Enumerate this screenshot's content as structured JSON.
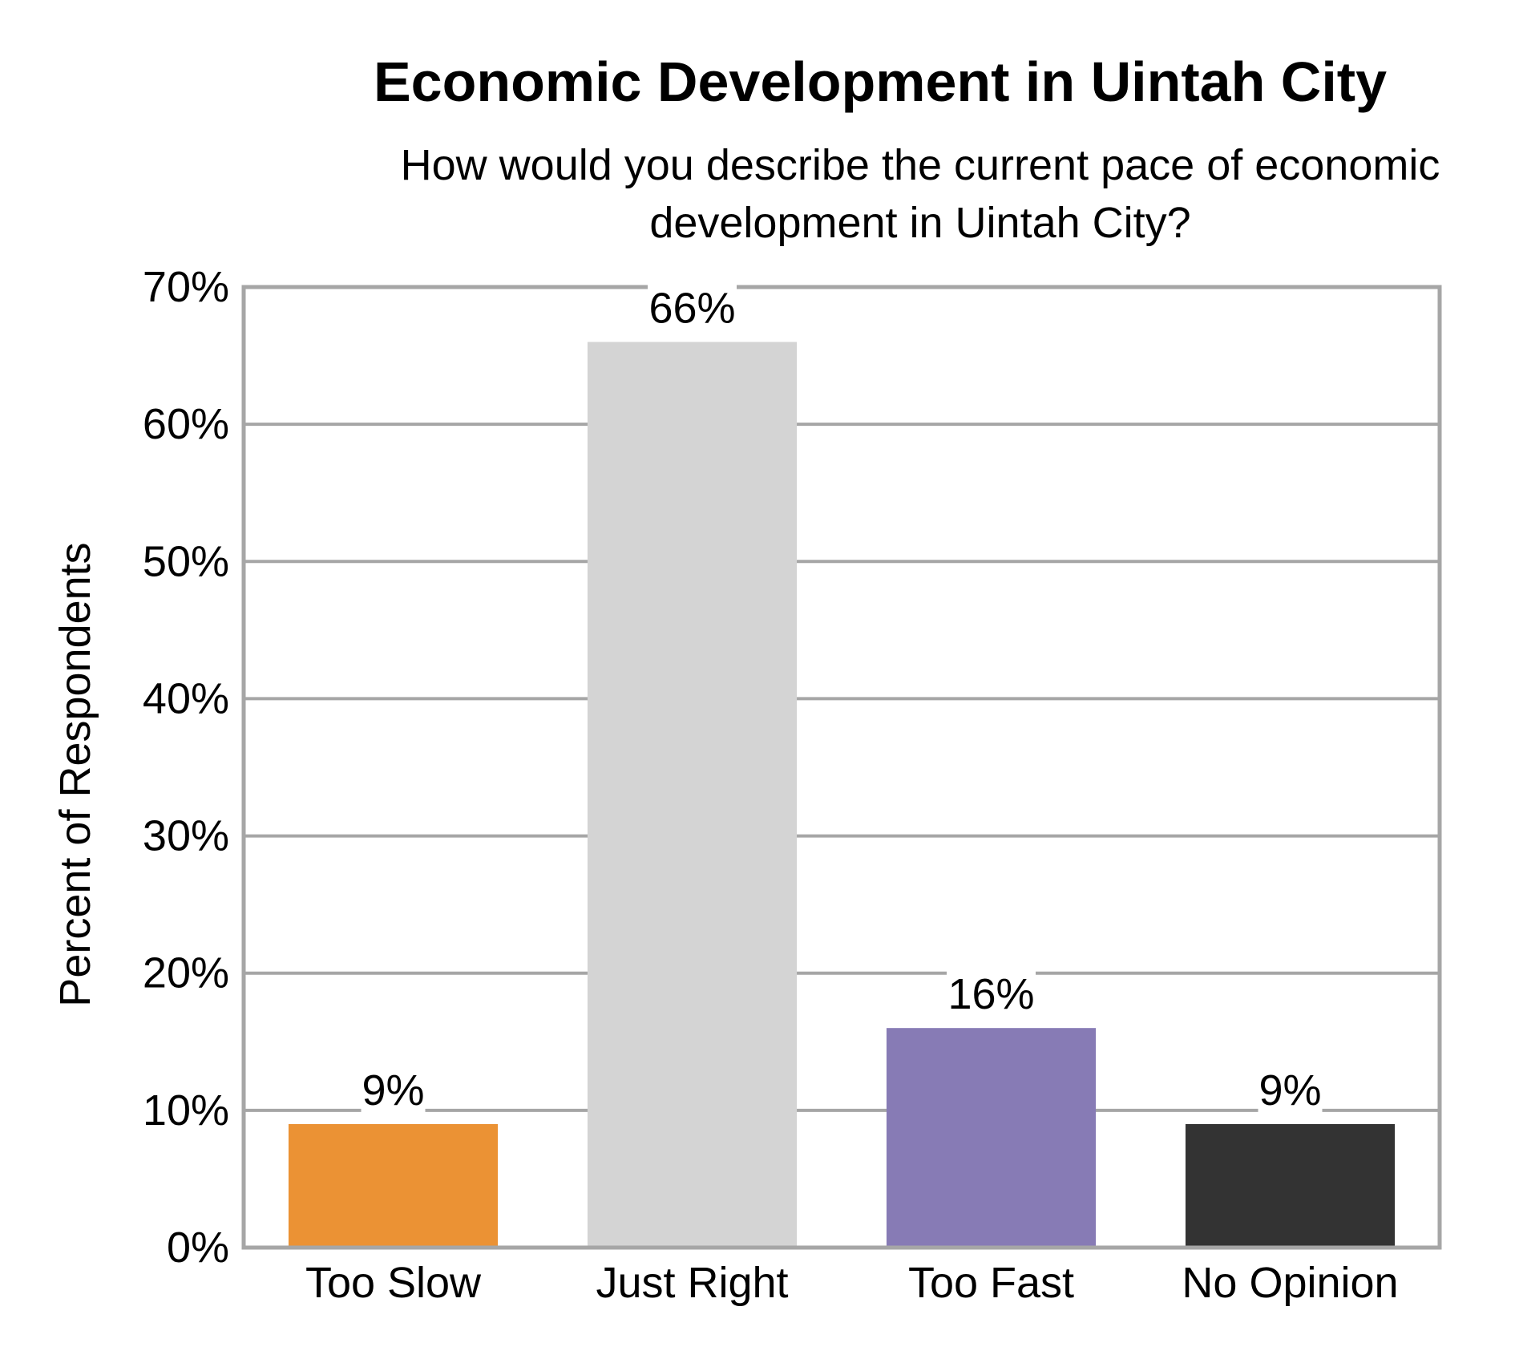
{
  "chart_data": {
    "type": "bar",
    "title": "Economic Development in Uintah City",
    "subtitle": "How would you describe the current pace of economic development in Uintah City?",
    "xlabel": "",
    "ylabel": "Percent of Respondents",
    "ylim": [
      0,
      70
    ],
    "ytick_step": 10,
    "ytick_labels": [
      "0%",
      "10%",
      "20%",
      "30%",
      "40%",
      "50%",
      "60%",
      "70%"
    ],
    "categories": [
      "Too Slow",
      "Just Right",
      "Too Fast",
      "No Opinion"
    ],
    "values": [
      9,
      66,
      16,
      9
    ],
    "data_labels": [
      "9%",
      "66%",
      "16%",
      "9%"
    ],
    "colors": [
      "#EB9234",
      "#D4D4D4",
      "#877BB5",
      "#333333"
    ],
    "grid": true,
    "legend": "none"
  }
}
